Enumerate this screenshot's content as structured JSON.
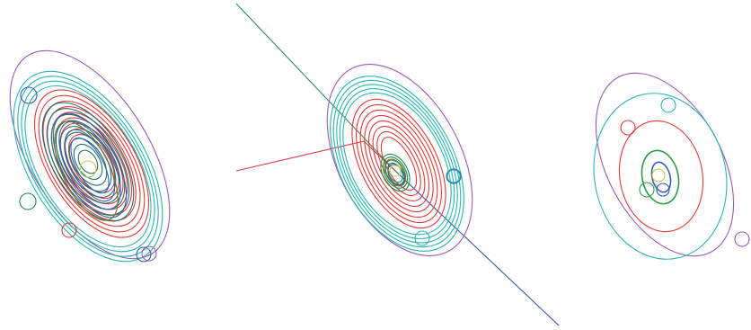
{
  "colors": {
    "purple": "#9b59b6",
    "teal": "#2bb5b0",
    "red": "#e03a3a",
    "darkgreen": "#1f8a4c",
    "green": "#2e9a4a",
    "blue": "#2f5fb5",
    "darkteal": "#1f6f6a",
    "yellow": "#c8c84a",
    "olive": "#6b7a2a",
    "axis_green": "#2e8b57",
    "axis_red": "#d83a3a",
    "axis_blue": "#2f55b0"
  },
  "panels": [
    {
      "name": "panel-left-orbits"
    },
    {
      "name": "panel-middle-orbits"
    },
    {
      "name": "panel-right-orbits"
    }
  ]
}
